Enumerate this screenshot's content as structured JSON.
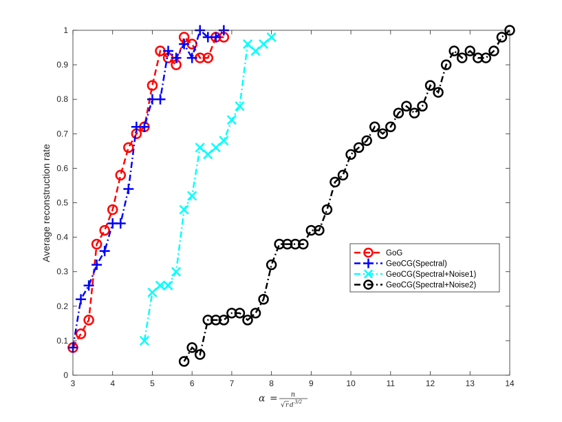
{
  "chart_data": {
    "type": "line",
    "xlim": [
      3,
      14
    ],
    "ylim": [
      0,
      1
    ],
    "xticks": [
      "3",
      "4",
      "5",
      "6",
      "7",
      "8",
      "9",
      "10",
      "11",
      "12",
      "13",
      "14"
    ],
    "yticks": [
      "0",
      "0.1",
      "0.2",
      "0.3",
      "0.4",
      "0.5",
      "0.6",
      "0.7",
      "0.8",
      "0.9",
      "1"
    ],
    "ylabel": "Average reconstruction rate",
    "xlabel": {
      "lhs": "α",
      "eq": "=",
      "num": "n",
      "den_sqrt": "√",
      "den_r": "r",
      "den_d": "d",
      "den_exp": "3/2"
    },
    "grid": false,
    "legend_position": "right-middle",
    "series": [
      {
        "name": "GoG",
        "color": "#ff0000",
        "line_style": "dash",
        "marker": "circle",
        "x": [
          3.0,
          3.2,
          3.4,
          3.6,
          3.8,
          4.0,
          4.2,
          4.4,
          4.6,
          4.8,
          5.0,
          5.2,
          5.4,
          5.6,
          5.8,
          6.0,
          6.2,
          6.4,
          6.6,
          6.8
        ],
        "y": [
          0.08,
          0.12,
          0.16,
          0.38,
          0.42,
          0.48,
          0.58,
          0.66,
          0.7,
          0.72,
          0.84,
          0.94,
          0.92,
          0.9,
          0.98,
          0.96,
          0.92,
          0.92,
          0.98,
          0.98
        ]
      },
      {
        "name": "GeoCG(Spectral)",
        "color": "#0000ff",
        "line_style": "dashdot",
        "marker": "plus",
        "x": [
          3.0,
          3.2,
          3.4,
          3.6,
          3.8,
          4.0,
          4.2,
          4.4,
          4.6,
          4.8,
          5.0,
          5.2,
          5.4,
          5.6,
          5.8,
          6.0,
          6.2,
          6.4,
          6.6,
          6.8
        ],
        "y": [
          0.08,
          0.22,
          0.26,
          0.32,
          0.36,
          0.44,
          0.44,
          0.54,
          0.72,
          0.72,
          0.8,
          0.8,
          0.94,
          0.92,
          0.96,
          0.92,
          1.0,
          0.98,
          0.98,
          1.0
        ]
      },
      {
        "name": "GeoCG(Spectral+Noise1)",
        "color": "#00ffff",
        "line_style": "dashdot",
        "marker": "x",
        "x": [
          4.8,
          5.0,
          5.2,
          5.4,
          5.6,
          5.8,
          6.0,
          6.2,
          6.4,
          6.6,
          6.8,
          7.0,
          7.2,
          7.4,
          7.6,
          7.8,
          8.0
        ],
        "y": [
          0.1,
          0.24,
          0.26,
          0.26,
          0.3,
          0.48,
          0.52,
          0.66,
          0.64,
          0.66,
          0.68,
          0.74,
          0.78,
          0.96,
          0.94,
          0.96,
          0.98
        ]
      },
      {
        "name": "GeoCG(Spectral+Noise2)",
        "color": "#000000",
        "line_style": "dashdot",
        "marker": "circle",
        "x": [
          5.8,
          6.0,
          6.2,
          6.4,
          6.6,
          6.8,
          7.0,
          7.2,
          7.4,
          7.6,
          7.8,
          8.0,
          8.2,
          8.4,
          8.6,
          8.8,
          9.0,
          9.2,
          9.4,
          9.6,
          9.8,
          10.0,
          10.2,
          10.4,
          10.6,
          10.8,
          11.0,
          11.2,
          11.4,
          11.6,
          11.8,
          12.0,
          12.2,
          12.4,
          12.6,
          12.8,
          13.0,
          13.2,
          13.4,
          13.6,
          13.8,
          14.0
        ],
        "y": [
          0.04,
          0.08,
          0.06,
          0.16,
          0.16,
          0.16,
          0.18,
          0.18,
          0.16,
          0.18,
          0.22,
          0.32,
          0.38,
          0.38,
          0.38,
          0.38,
          0.42,
          0.42,
          0.48,
          0.56,
          0.58,
          0.64,
          0.66,
          0.68,
          0.72,
          0.7,
          0.72,
          0.76,
          0.78,
          0.76,
          0.78,
          0.84,
          0.82,
          0.9,
          0.94,
          0.92,
          0.94,
          0.92,
          0.92,
          0.94,
          0.98,
          1.0
        ]
      }
    ]
  }
}
